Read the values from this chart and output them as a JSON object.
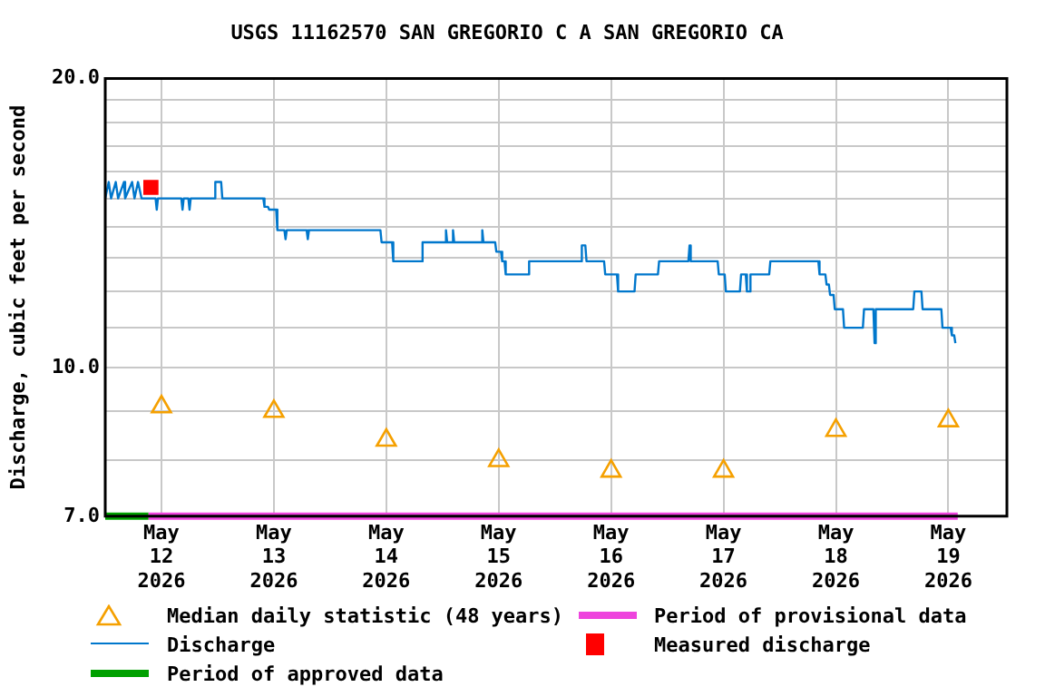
{
  "chart_data": {
    "type": "line",
    "title": "USGS 11162570 SAN GREGORIO C A SAN GREGORIO CA",
    "ylabel": "Discharge, cubic feet per second",
    "log": "y",
    "grid": true,
    "legend": "bottom",
    "xlim": [
      "2026-05-11T12:00",
      "2026-05-19T12:30"
    ],
    "xticks": [
      {
        "value": "2026-05-12",
        "label": "May\n12\n2026"
      },
      {
        "value": "2026-05-13",
        "label": "May\n13\n2026"
      },
      {
        "value": "2026-05-14",
        "label": "May\n14\n2026"
      },
      {
        "value": "2026-05-15",
        "label": "May\n15\n2026"
      },
      {
        "value": "2026-05-16",
        "label": "May\n16\n2026"
      },
      {
        "value": "2026-05-17",
        "label": "May\n17\n2026"
      },
      {
        "value": "2026-05-18",
        "label": "May\n18\n2026"
      },
      {
        "value": "2026-05-19",
        "label": "May\n19\n2026"
      }
    ],
    "ylim": [
      7,
      20
    ],
    "yticks": [
      {
        "value": 7,
        "label": "7.0"
      },
      {
        "value": 8,
        "label": null
      },
      {
        "value": 9,
        "label": null
      },
      {
        "value": 10,
        "label": "10.0"
      },
      {
        "value": 11,
        "label": null
      },
      {
        "value": 12,
        "label": null
      },
      {
        "value": 13,
        "label": null
      },
      {
        "value": 14,
        "label": null
      },
      {
        "value": 15,
        "label": null
      },
      {
        "value": 16,
        "label": null
      },
      {
        "value": 17,
        "label": null
      },
      {
        "value": 18,
        "label": null
      },
      {
        "value": 19,
        "label": null
      },
      {
        "value": 20,
        "label": "20.0"
      }
    ],
    "series": [
      {
        "name": "Median daily statistic (48 years)",
        "type": "scatter",
        "marker": "triangle",
        "color": "#f5a000",
        "x": [
          "2026-05-12",
          "2026-05-13",
          "2026-05-14",
          "2026-05-15",
          "2026-05-16",
          "2026-05-17",
          "2026-05-18",
          "2026-05-19"
        ],
        "values": [
          9.1,
          9.0,
          8.4,
          8.0,
          7.8,
          7.8,
          8.6,
          8.8
        ]
      },
      {
        "name": "Period of provisional data",
        "marker": "none",
        "color": "#ee44dd",
        "x": [
          "2026-05-11T21:15",
          "2026-05-19T02:00"
        ],
        "values": [
          7,
          7
        ]
      },
      {
        "name": "Discharge",
        "marker": "none",
        "color": "#0077cc",
        "x": [
          "2026-05-11T12:00",
          "2026-05-11T12:45",
          "2026-05-11T13:15",
          "2026-05-11T14:15",
          "2026-05-11T14:45",
          "2026-05-11T16:00",
          "2026-05-11T16:15",
          "2026-05-11T17:45",
          "2026-05-11T18:15",
          "2026-05-11T19:00",
          "2026-05-11T19:45",
          "2026-05-11T22:45",
          "2026-05-11T23:00",
          "2026-05-11T23:15",
          "2026-05-12T04:15",
          "2026-05-12T04:30",
          "2026-05-12T04:45",
          "2026-05-12T05:45",
          "2026-05-12T06:00",
          "2026-05-12T06:15",
          "2026-05-12T11:15",
          "2026-05-12T11:30",
          "2026-05-12T12:45",
          "2026-05-12T13:00",
          "2026-05-12T21:45",
          "2026-05-12T22:00",
          "2026-05-12T22:45",
          "2026-05-12T23:00",
          "2026-05-13T00:30",
          "2026-05-13T00:45",
          "2026-05-13T02:15",
          "2026-05-13T02:30",
          "2026-05-13T02:45",
          "2026-05-13T07:00",
          "2026-05-13T07:15",
          "2026-05-13T07:30",
          "2026-05-13T22:45",
          "2026-05-13T23:00",
          "2026-05-14T01:15",
          "2026-05-14T01:30",
          "2026-05-14T07:30",
          "2026-05-14T07:45",
          "2026-05-14T12:30",
          "2026-05-14T12:45",
          "2026-05-14T13:00",
          "2026-05-14T14:00",
          "2026-05-14T14:15",
          "2026-05-14T14:30",
          "2026-05-14T20:15",
          "2026-05-14T20:30",
          "2026-05-14T20:45",
          "2026-05-14T23:15",
          "2026-05-14T23:30",
          "2026-05-15T00:30",
          "2026-05-15T00:45",
          "2026-05-15T01:15",
          "2026-05-15T01:30",
          "2026-05-15T06:15",
          "2026-05-15T06:30",
          "2026-05-15T17:30",
          "2026-05-15T17:45",
          "2026-05-15T18:30",
          "2026-05-15T18:45",
          "2026-05-15T22:30",
          "2026-05-15T22:45",
          "2026-05-16T01:15",
          "2026-05-16T01:30",
          "2026-05-16T05:00",
          "2026-05-16T05:15",
          "2026-05-16T10:00",
          "2026-05-16T10:15",
          "2026-05-16T16:30",
          "2026-05-16T16:45",
          "2026-05-16T17:00",
          "2026-05-16T22:45",
          "2026-05-16T23:00",
          "2026-05-17T00:15",
          "2026-05-17T00:30",
          "2026-05-17T03:30",
          "2026-05-17T03:45",
          "2026-05-17T04:45",
          "2026-05-17T05:00",
          "2026-05-17T05:30",
          "2026-05-17T05:45",
          "2026-05-17T09:45",
          "2026-05-17T10:00",
          "2026-05-17T20:15",
          "2026-05-17T20:30",
          "2026-05-17T21:45",
          "2026-05-17T22:00",
          "2026-05-17T22:30",
          "2026-05-17T22:45",
          "2026-05-17T23:30",
          "2026-05-17T23:45",
          "2026-05-18T01:30",
          "2026-05-18T01:45",
          "2026-05-18T05:45",
          "2026-05-18T06:00",
          "2026-05-18T08:00",
          "2026-05-18T08:15",
          "2026-05-18T08:30",
          "2026-05-18T16:30",
          "2026-05-18T16:45",
          "2026-05-18T18:15",
          "2026-05-18T18:30",
          "2026-05-18T22:30",
          "2026-05-18T22:45",
          "2026-05-19T00:30",
          "2026-05-19T00:45",
          "2026-05-19T01:15",
          "2026-05-19T01:30"
        ],
        "values": [
          15.0,
          15.6,
          15.0,
          15.6,
          15.0,
          15.6,
          15.0,
          15.6,
          15.0,
          15.6,
          15.0,
          15.0,
          14.6,
          15.0,
          15.0,
          14.6,
          15.0,
          15.0,
          14.6,
          15.0,
          15.0,
          15.6,
          15.6,
          15.0,
          15.0,
          14.7,
          14.7,
          14.6,
          14.6,
          13.9,
          13.9,
          13.6,
          13.9,
          13.9,
          13.6,
          13.9,
          13.9,
          13.5,
          13.5,
          12.9,
          12.9,
          13.5,
          13.5,
          13.9,
          13.5,
          13.5,
          13.9,
          13.5,
          13.5,
          13.9,
          13.5,
          13.5,
          13.2,
          13.2,
          12.9,
          12.9,
          12.5,
          12.5,
          12.9,
          12.9,
          13.4,
          13.4,
          12.9,
          12.9,
          12.5,
          12.5,
          12.0,
          12.0,
          12.5,
          12.5,
          12.9,
          12.9,
          13.4,
          12.9,
          12.9,
          12.5,
          12.5,
          12.0,
          12.0,
          12.5,
          12.5,
          12.0,
          12.0,
          12.5,
          12.5,
          12.9,
          12.9,
          12.5,
          12.5,
          12.2,
          12.2,
          11.9,
          11.9,
          11.5,
          11.5,
          11.0,
          11.0,
          11.5,
          11.5,
          10.6,
          11.5,
          11.5,
          12.0,
          12.0,
          11.5,
          11.5,
          11.0,
          11.0,
          10.8,
          10.8,
          10.6
        ]
      },
      {
        "name": "Measured discharge",
        "type": "scatter",
        "marker": "square",
        "color": "#ff0000",
        "x": [
          "2026-05-11T21:45"
        ],
        "values": [
          15.4
        ]
      },
      {
        "name": "Period of approved data",
        "marker": "none",
        "color": "#00a000",
        "x": [
          "2026-05-11T12:00",
          "2026-05-11T21:15"
        ],
        "values": [
          7,
          7
        ]
      }
    ]
  }
}
